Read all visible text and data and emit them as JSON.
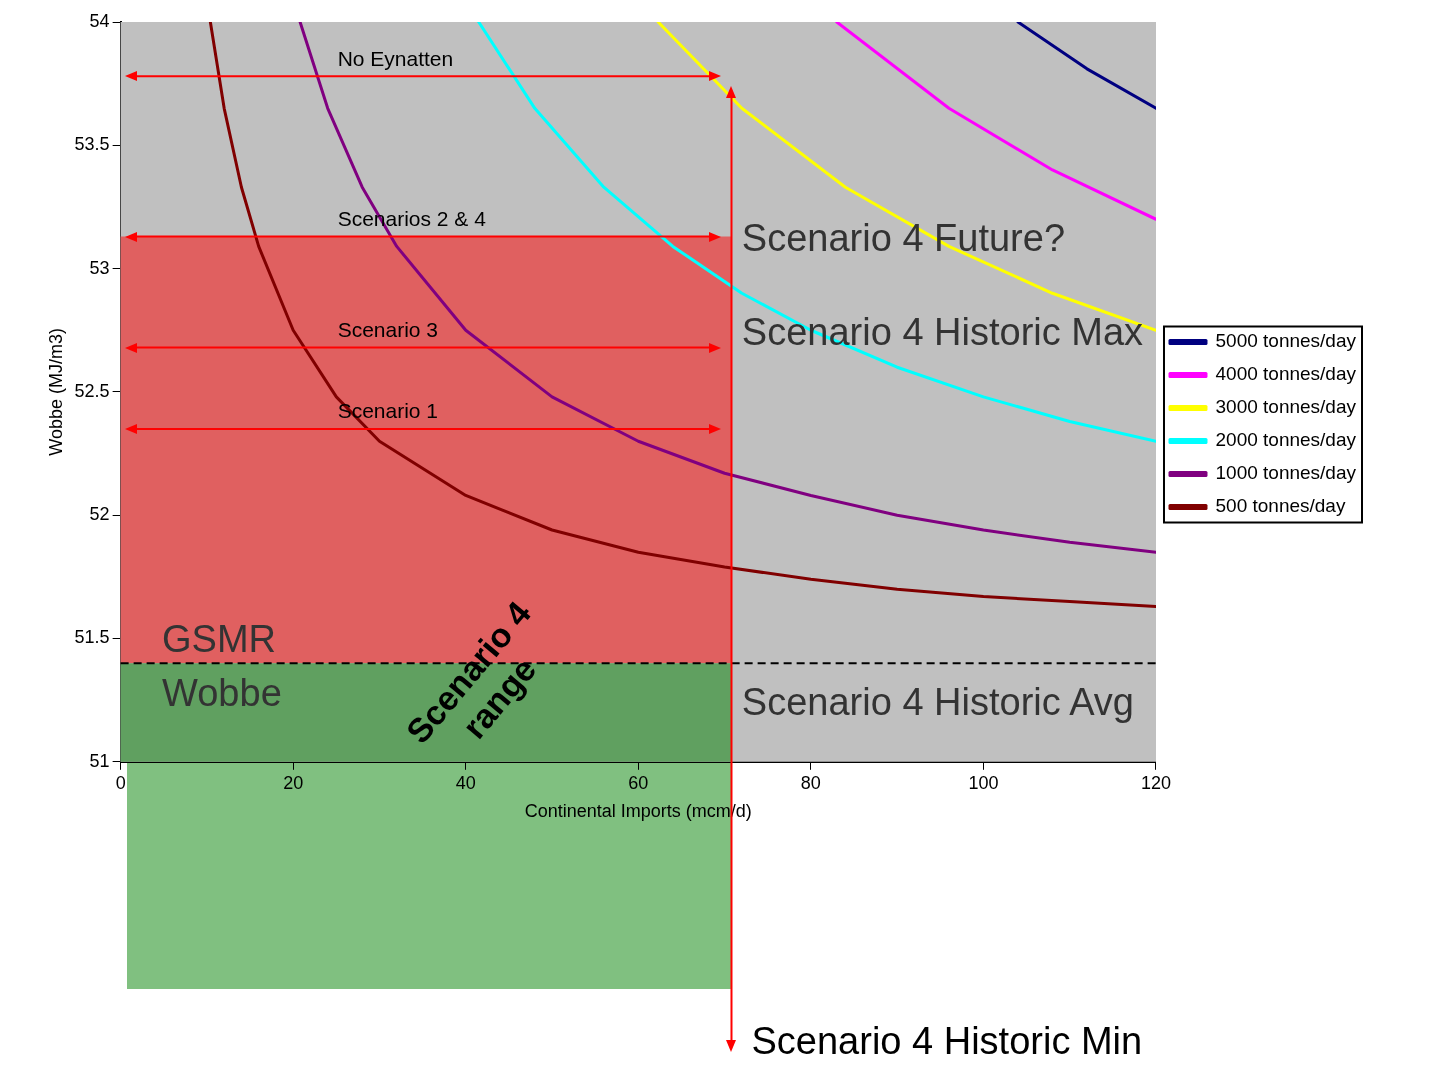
{
  "chart_data": {
    "type": "line",
    "xlabel": "Continental Imports (mcm/d)",
    "ylabel": "Wobbe (MJ/m3)",
    "xlim": [
      0,
      120
    ],
    "xticks": [
      0,
      20,
      40,
      60,
      80,
      100,
      120
    ],
    "ylim": [
      51,
      54
    ],
    "yticks": [
      51,
      51.5,
      52,
      52.5,
      53,
      53.5,
      54
    ],
    "legend": "right",
    "marker": "none",
    "line_style": "solid",
    "series": [
      {
        "name": "5000 tonnes/day",
        "color": "#000080",
        "x": [
          104,
          112,
          120
        ],
        "values": [
          54.0,
          53.81,
          53.65
        ]
      },
      {
        "name": "4000 tonnes/day",
        "color": "#ff00ff",
        "x": [
          83,
          96,
          108,
          120
        ],
        "values": [
          54.0,
          53.65,
          53.4,
          53.2
        ]
      },
      {
        "name": "3000 tonnes/day",
        "color": "#ffff00",
        "x": [
          62.3,
          72,
          84,
          96,
          108,
          120
        ],
        "values": [
          54.0,
          53.65,
          53.33,
          53.09,
          52.9,
          52.75
        ]
      },
      {
        "name": "2000 tonnes/day",
        "color": "#00ffff",
        "x": [
          41.5,
          48,
          56,
          64,
          72,
          80,
          90,
          100,
          110,
          120
        ],
        "values": [
          54.0,
          53.65,
          53.33,
          53.09,
          52.9,
          52.75,
          52.6,
          52.48,
          52.38,
          52.3
        ]
      },
      {
        "name": "1000 tonnes/day",
        "color": "#800080",
        "x": [
          20.8,
          24,
          28,
          32,
          40,
          50,
          60,
          70,
          80,
          90,
          100,
          110,
          120
        ],
        "values": [
          54.0,
          53.65,
          53.33,
          53.09,
          52.75,
          52.48,
          52.3,
          52.17,
          52.08,
          52.0,
          51.94,
          51.89,
          51.85
        ]
      },
      {
        "name": "500 tonnes/day",
        "color": "#800000",
        "x": [
          10.4,
          12,
          14,
          16,
          20,
          25,
          30,
          40,
          50,
          60,
          70,
          80,
          90,
          100,
          110,
          120
        ],
        "values": [
          54.0,
          53.65,
          53.33,
          53.09,
          52.75,
          52.48,
          52.3,
          52.08,
          51.94,
          51.85,
          51.79,
          51.74,
          51.7,
          51.67,
          51.65,
          51.63
        ]
      }
    ],
    "bands": [
      {
        "axis": "y",
        "from": 51.4,
        "to": 53.13,
        "color": "#e06060"
      },
      {
        "axis": "y",
        "from": 51,
        "to": 51.4,
        "color": "#60a060"
      }
    ],
    "ref_lines": [
      {
        "axis": "y",
        "value": 53.78,
        "label": "No Eynatten",
        "color": "#ff0000"
      },
      {
        "axis": "y",
        "value": 53.13,
        "label": "Scenarios 2 & 4",
        "color": "#ff0000"
      },
      {
        "axis": "y",
        "value": 52.68,
        "label": "Scenario 3",
        "color": "#ff0000"
      },
      {
        "axis": "y",
        "value": 52.35,
        "label": "Scenario 1",
        "color": "#ff0000"
      },
      {
        "axis": "y",
        "value": 51.4,
        "color": "#000000",
        "line_style": "dashed"
      },
      {
        "axis": "x",
        "value": 70.8,
        "label": "Scenario 4 Historic Min",
        "color": "#ff0000"
      }
    ],
    "annotations": [
      "Scenario 4 Future?",
      "Scenario 4 Historic Max",
      "Scenario 4 Historic Avg",
      "GSMR",
      "Wobbe",
      "Scenario 4 range"
    ]
  }
}
